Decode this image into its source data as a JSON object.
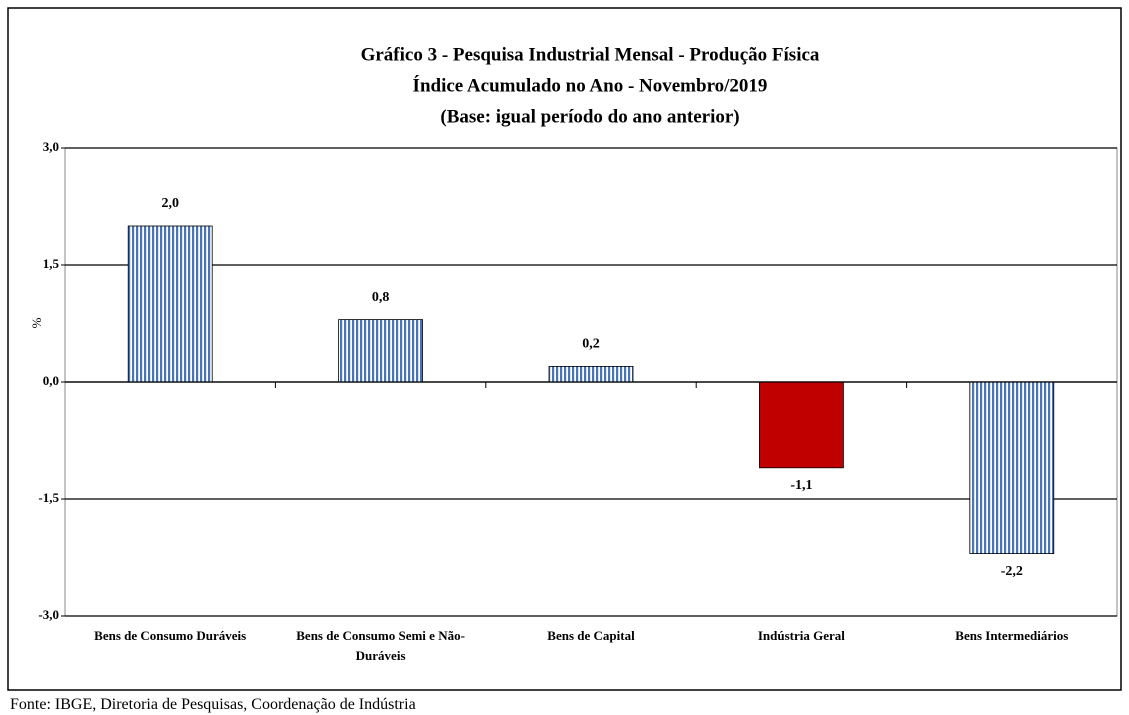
{
  "chart_data": {
    "type": "bar",
    "title": [
      "Gráfico 3 - Pesquisa Industrial Mensal - Produção Física",
      "Índice Acumulado no Ano - Novembro/2019",
      "(Base: igual período do ano anterior)"
    ],
    "ylabel": "%",
    "categories": [
      "Bens de Consumo Duráveis",
      "Bens de Consumo Semi e Não-Duráveis",
      "Bens de Capital",
      "Indústria Geral",
      "Bens Intermediários"
    ],
    "values": [
      2.0,
      0.8,
      0.2,
      -1.1,
      -2.2
    ],
    "value_labels": [
      "2,0",
      "0,8",
      "0,2",
      "-1,1",
      "-2,2"
    ],
    "colors": [
      "#4a74b8",
      "#4a74b8",
      "#4a74b8",
      "#c00000",
      "#4a74b8"
    ],
    "hatch": [
      true,
      true,
      true,
      false,
      true
    ],
    "ylim": [
      -3,
      3
    ],
    "yticks": [
      {
        "value": -3,
        "label": "-3,0"
      },
      {
        "value": -1.5,
        "label": "-1,5"
      },
      {
        "value": 0,
        "label": "0,0"
      },
      {
        "value": 1.5,
        "label": "1,5"
      },
      {
        "value": 3,
        "label": "3,0"
      }
    ],
    "grid": true,
    "source": "Fonte: IBGE, Diretoria de Pesquisas, Coordenação de Indústria"
  }
}
